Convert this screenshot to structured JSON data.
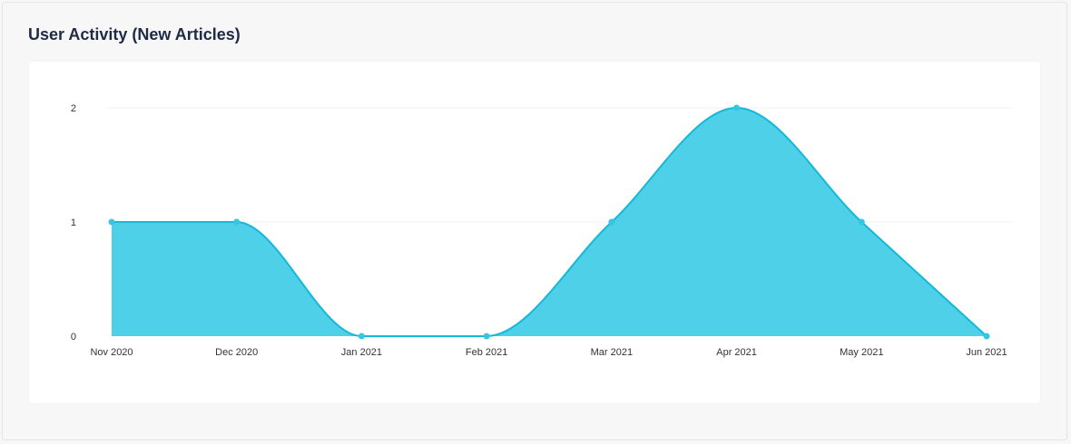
{
  "title": "User Activity (New Articles)",
  "colors": {
    "area_fill": "#4dd0e8",
    "line": "#14b8d8",
    "point": "#36c6e3",
    "grid": "#f0f1f3",
    "title": "#1f2a44"
  },
  "chart_data": {
    "type": "area",
    "title": "",
    "xlabel": "",
    "ylabel": "",
    "grid": true,
    "legend": "none",
    "curve": "smooth",
    "categories": [
      "Nov 2020",
      "Dec 2020",
      "Jan 2021",
      "Feb 2021",
      "Mar 2021",
      "Apr 2021",
      "May 2021",
      "Jun 2021"
    ],
    "series": [
      {
        "values": [
          1,
          1,
          0,
          0,
          1,
          2,
          1,
          0
        ]
      }
    ],
    "ylim": [
      0,
      2
    ],
    "yticks": [
      0,
      1,
      2
    ]
  }
}
